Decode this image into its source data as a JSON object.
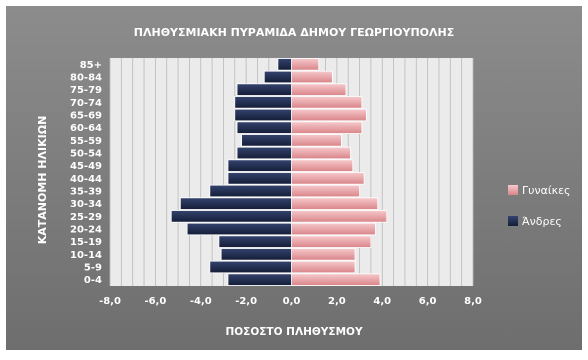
{
  "chart_data": {
    "type": "bar",
    "orientation": "horizontal",
    "title": "ΠΛΗΘΥΣΜΙΑΚΗ ΠΥΡΑΜΙΔΑ ΔΗΜΟΥ ΓΕΩΡΓΙΟΥΠΟΛΗΣ",
    "xlabel": "ΠΟΣΟΣΤΟ ΠΛΗΘΥΣΜΟΥ",
    "ylabel": "ΚΑΤΑΝΟΜΗ ΗΛΙΚΙΩΝ",
    "xlim": [
      -8,
      8
    ],
    "x_ticks": [
      "-8,0",
      "-6,0",
      "-4,0",
      "-2,0",
      "0,0",
      "2,0",
      "4,0",
      "6,0",
      "8,0"
    ],
    "categories": [
      "0-4",
      "5-9",
      "10-14",
      "15-19",
      "20-24",
      "25-29",
      "30-34",
      "35-39",
      "40-44",
      "45-49",
      "50-54",
      "55-59",
      "60-64",
      "65-69",
      "70-74",
      "75-79",
      "80-84",
      "85+"
    ],
    "series": [
      {
        "name": "Γυναίκες",
        "color": "#e9a1a5",
        "values": [
          3.9,
          2.8,
          2.8,
          3.5,
          3.7,
          4.2,
          3.8,
          3.0,
          3.2,
          2.7,
          2.6,
          2.2,
          3.1,
          3.3,
          3.1,
          2.4,
          1.8,
          1.2
        ]
      },
      {
        "name": "Άνδρες",
        "color": "#1f2b4e",
        "values": [
          -2.8,
          -3.6,
          -3.1,
          -3.2,
          -4.6,
          -5.3,
          -4.9,
          -3.6,
          -2.8,
          -2.8,
          -2.4,
          -2.2,
          -2.4,
          -2.5,
          -2.5,
          -2.4,
          -1.2,
          -0.6
        ]
      }
    ],
    "grid": true,
    "legend_position": "right"
  }
}
